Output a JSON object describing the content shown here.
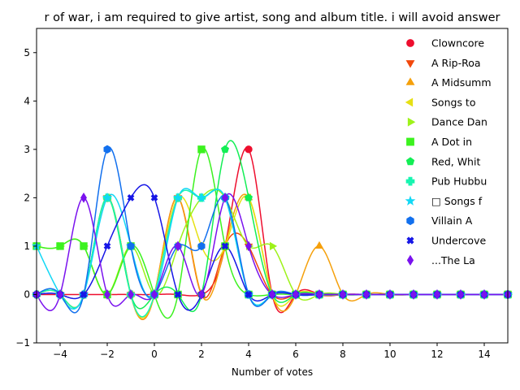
{
  "chart_data": {
    "type": "line",
    "title": "r of war, i am required to give artist, song and album title. i will avoid answer",
    "xlabel": "Number of votes",
    "ylabel": "",
    "xlim": [
      -5,
      15
    ],
    "ylim": [
      -1,
      5.5
    ],
    "xticks": [
      -4,
      -2,
      0,
      2,
      4,
      6,
      8,
      10,
      12,
      14
    ],
    "yticks": [
      -1,
      0,
      1,
      2,
      3,
      4,
      5
    ],
    "x": [
      -5,
      -4,
      -3,
      -2,
      -1,
      0,
      1,
      2,
      3,
      4,
      5,
      6,
      7,
      8,
      9,
      10,
      11,
      12,
      13,
      14,
      15
    ],
    "grid": false,
    "legend_position": "top-right",
    "series": [
      {
        "name": "Clowncore",
        "color": "#ee0e2e",
        "marker": "circle",
        "values": [
          0,
          0,
          0,
          0,
          0,
          0,
          0,
          0,
          1,
          3,
          0,
          0,
          0,
          0,
          0,
          0,
          0,
          0,
          0,
          0,
          0
        ]
      },
      {
        "name": "A Rip-Roa",
        "color": "#f2480c",
        "marker": "triangle-down",
        "values": [
          0,
          0,
          0,
          2,
          0,
          0,
          2,
          0,
          1,
          1,
          0,
          0,
          0,
          0,
          0,
          0,
          0,
          0,
          0,
          0,
          0
        ]
      },
      {
        "name": "A Midsumm",
        "color": "#f5a00b",
        "marker": "triangle-up",
        "values": [
          0,
          0,
          0,
          2,
          0,
          0,
          2,
          0,
          1,
          2,
          0,
          0,
          1,
          0,
          0,
          0,
          0,
          0,
          0,
          0,
          0
        ]
      },
      {
        "name": "Songs to",
        "color": "#e6e014",
        "marker": "triangle-left",
        "values": [
          0,
          0,
          0,
          2,
          0,
          0,
          2,
          1,
          1,
          2,
          0,
          0,
          0,
          0,
          0,
          0,
          0,
          0,
          0,
          0,
          0
        ]
      },
      {
        "name": "Dance Dan",
        "color": "#9ef21a",
        "marker": "triangle-right",
        "values": [
          1,
          1,
          1,
          0,
          1,
          0,
          1,
          2,
          2,
          1,
          1,
          0,
          0,
          0,
          0,
          0,
          0,
          0,
          0,
          0,
          0
        ]
      },
      {
        "name": "A Dot in",
        "color": "#3cf21f",
        "marker": "square",
        "values": [
          1,
          1,
          1,
          0,
          1,
          0,
          0,
          3,
          1,
          0,
          0,
          0,
          0,
          0,
          0,
          0,
          0,
          0,
          0,
          0,
          0
        ]
      },
      {
        "name": "Red, Whit",
        "color": "#13ee55",
        "marker": "pentagon",
        "values": [
          0,
          0,
          0,
          2,
          0,
          0,
          0,
          0,
          3,
          2,
          0,
          0,
          0,
          0,
          0,
          0,
          0,
          0,
          0,
          0,
          0
        ]
      },
      {
        "name": "Pub Hubbu",
        "color": "#17f5b0",
        "marker": "plus",
        "values": [
          0,
          0,
          0,
          2,
          0,
          0,
          2,
          2,
          2,
          0,
          0,
          0,
          0,
          0,
          0,
          0,
          0,
          0,
          0,
          0,
          0
        ]
      },
      {
        "name": "\u0000 Songs f",
        "color": "#12d8f5",
        "marker": "star",
        "values": [
          1,
          0,
          0,
          2,
          1,
          0,
          2,
          2,
          2,
          0,
          0,
          0,
          0,
          0,
          0,
          0,
          0,
          0,
          0,
          0,
          0
        ]
      },
      {
        "name": "Villain A",
        "color": "#1270ee",
        "marker": "hexagon",
        "values": [
          0,
          0,
          0,
          3,
          1,
          0,
          1,
          1,
          2,
          0,
          0,
          0,
          0,
          0,
          0,
          0,
          0,
          0,
          0,
          0,
          0
        ]
      },
      {
        "name": "Undercove",
        "color": "#1616e6",
        "marker": "x",
        "values": [
          0,
          0,
          0,
          1,
          2,
          2,
          0,
          0,
          1,
          0,
          0,
          0,
          0,
          0,
          0,
          0,
          0,
          0,
          0,
          0,
          0
        ]
      },
      {
        "name": "...The La",
        "color": "#7a12ee",
        "marker": "diamond",
        "values": [
          0,
          0,
          2,
          0,
          0,
          0,
          1,
          0,
          2,
          1,
          0,
          0,
          0,
          0,
          0,
          0,
          0,
          0,
          0,
          0,
          0
        ]
      }
    ]
  }
}
